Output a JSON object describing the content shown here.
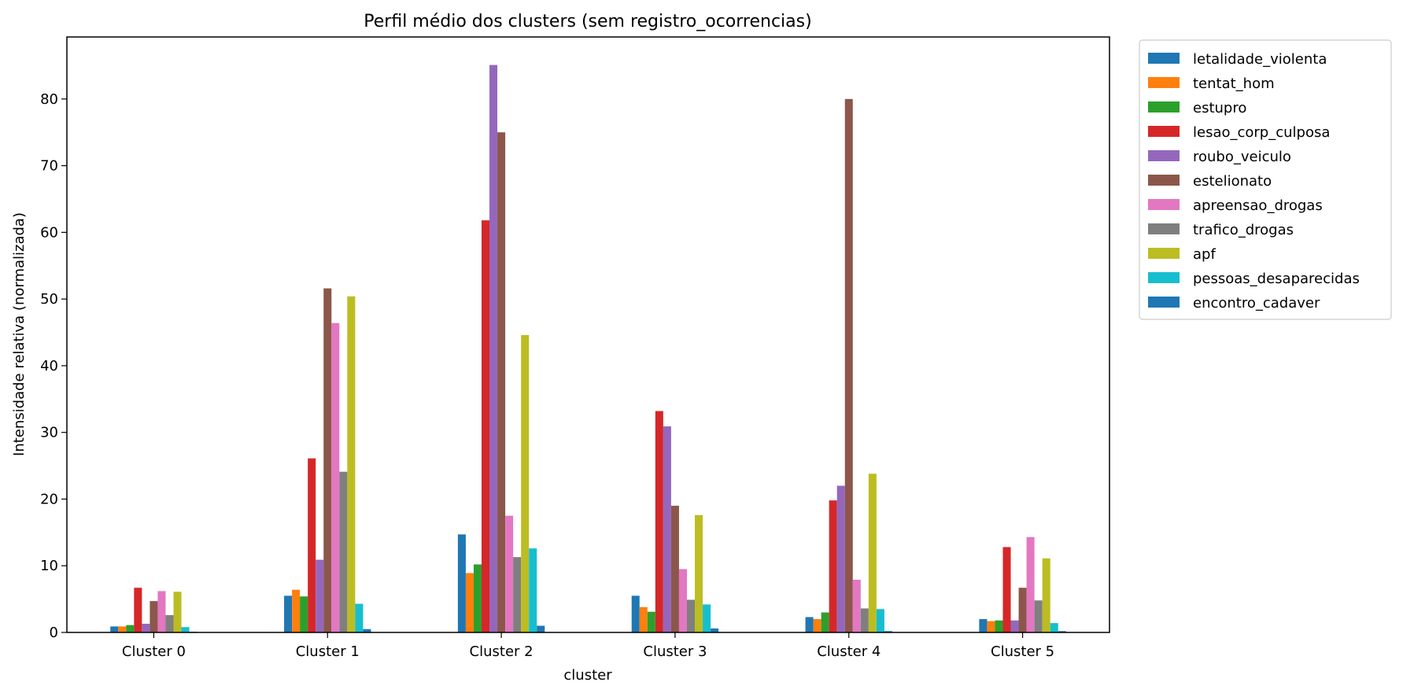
{
  "chart_data": {
    "type": "bar",
    "title": "Perfil médio dos clusters (sem registro_ocorrencias)",
    "xlabel": "cluster",
    "ylabel": "Intensidade relativa (normalizada)",
    "ylim": [
      0,
      89.3
    ],
    "yticks": [
      0,
      10,
      20,
      30,
      40,
      50,
      60,
      70,
      80
    ],
    "grid": false,
    "legend_position": "outside right, top",
    "categories": [
      "Cluster 0",
      "Cluster 1",
      "Cluster 2",
      "Cluster 3",
      "Cluster 4",
      "Cluster 5"
    ],
    "series": [
      {
        "name": "letalidade_violenta",
        "color": "#1f77b4",
        "values": [
          0.9,
          5.5,
          14.7,
          5.5,
          2.3,
          2.0
        ]
      },
      {
        "name": "tentat_hom",
        "color": "#ff7f0e",
        "values": [
          0.9,
          6.4,
          8.9,
          3.8,
          2.0,
          1.7
        ]
      },
      {
        "name": "estupro",
        "color": "#2ca02c",
        "values": [
          1.1,
          5.4,
          10.2,
          3.1,
          3.0,
          1.8
        ]
      },
      {
        "name": "lesao_corp_culposa",
        "color": "#d62728",
        "values": [
          6.7,
          26.1,
          61.8,
          33.2,
          19.8,
          12.8
        ]
      },
      {
        "name": "roubo_veiculo",
        "color": "#9467bd",
        "values": [
          1.3,
          10.9,
          85.1,
          30.9,
          22.0,
          1.8
        ]
      },
      {
        "name": "estelionato",
        "color": "#8c564b",
        "values": [
          4.7,
          51.6,
          75.0,
          19.0,
          80.0,
          6.7
        ]
      },
      {
        "name": "apreensao_drogas",
        "color": "#e377c2",
        "values": [
          6.2,
          46.4,
          17.5,
          9.5,
          7.9,
          14.3
        ]
      },
      {
        "name": "trafico_drogas",
        "color": "#7f7f7f",
        "values": [
          2.6,
          24.1,
          11.3,
          4.9,
          3.6,
          4.8
        ]
      },
      {
        "name": "apf",
        "color": "#bcbd22",
        "values": [
          6.1,
          50.4,
          44.6,
          17.6,
          23.8,
          11.1
        ]
      },
      {
        "name": "pessoas_desaparecidas",
        "color": "#17becf",
        "values": [
          0.8,
          4.3,
          12.6,
          4.2,
          3.5,
          1.4
        ]
      },
      {
        "name": "encontro_cadaver",
        "color": "#1f77b4",
        "values": [
          0.1,
          0.5,
          1.0,
          0.6,
          0.2,
          0.2
        ]
      }
    ]
  }
}
